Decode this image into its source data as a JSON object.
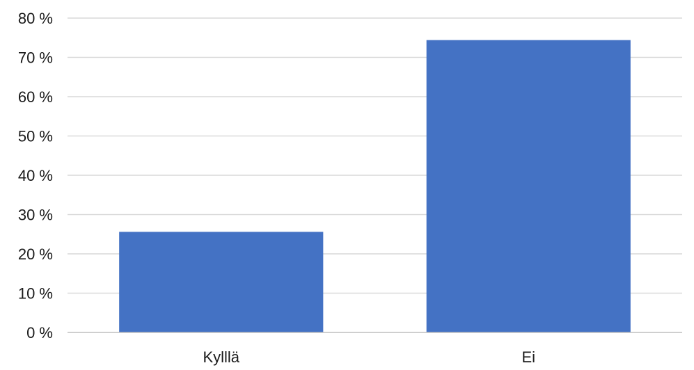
{
  "chart_data": {
    "type": "bar",
    "title": "",
    "xlabel": "",
    "ylabel": "",
    "categories": [
      "Kylllä",
      "Ei"
    ],
    "values": [
      25.6,
      74.4
    ],
    "ylim": [
      0,
      80
    ],
    "yticks": [
      0,
      10,
      20,
      30,
      40,
      50,
      60,
      70,
      80
    ],
    "y_tick_format": "{v} %",
    "grid": true,
    "legend": "none",
    "bar_color": "#4472c4",
    "grid_color": "#d9d9d9"
  }
}
